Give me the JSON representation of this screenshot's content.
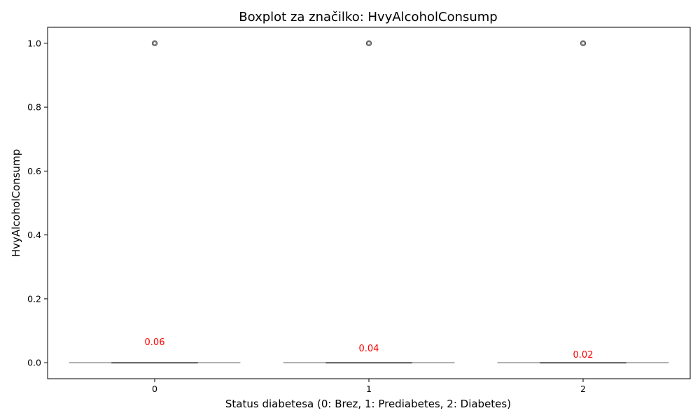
{
  "chart_data": {
    "type": "boxplot",
    "title": "Boxplot za značilko: HvyAlcoholConsump",
    "xlabel": "Status diabetesa (0: Brez, 1: Prediabetes, 2: Diabetes)",
    "ylabel": "HvyAlcoholConsump",
    "categories": [
      "0",
      "1",
      "2"
    ],
    "ylim": [
      -0.05,
      1.05
    ],
    "yticks": [
      0.0,
      0.2,
      0.4,
      0.6,
      0.8,
      1.0
    ],
    "ytick_labels": [
      "0.0",
      "0.2",
      "0.4",
      "0.6",
      "0.8",
      "1.0"
    ],
    "boxes": [
      {
        "category": "0",
        "min": 0,
        "q1": 0,
        "median": 0,
        "q3": 0,
        "max": 0,
        "outliers": [
          1.0
        ],
        "mean": 0.06,
        "mean_label": "0.06"
      },
      {
        "category": "1",
        "min": 0,
        "q1": 0,
        "median": 0,
        "q3": 0,
        "max": 0,
        "outliers": [
          1.0
        ],
        "mean": 0.04,
        "mean_label": "0.04"
      },
      {
        "category": "2",
        "min": 0,
        "q1": 0,
        "median": 0,
        "q3": 0,
        "max": 0,
        "outliers": [
          1.0
        ],
        "mean": 0.02,
        "mean_label": "0.02"
      }
    ],
    "grid": false,
    "colors": {
      "box": "#666666",
      "outlier": "#555555",
      "annotation": "#ff0000"
    }
  }
}
